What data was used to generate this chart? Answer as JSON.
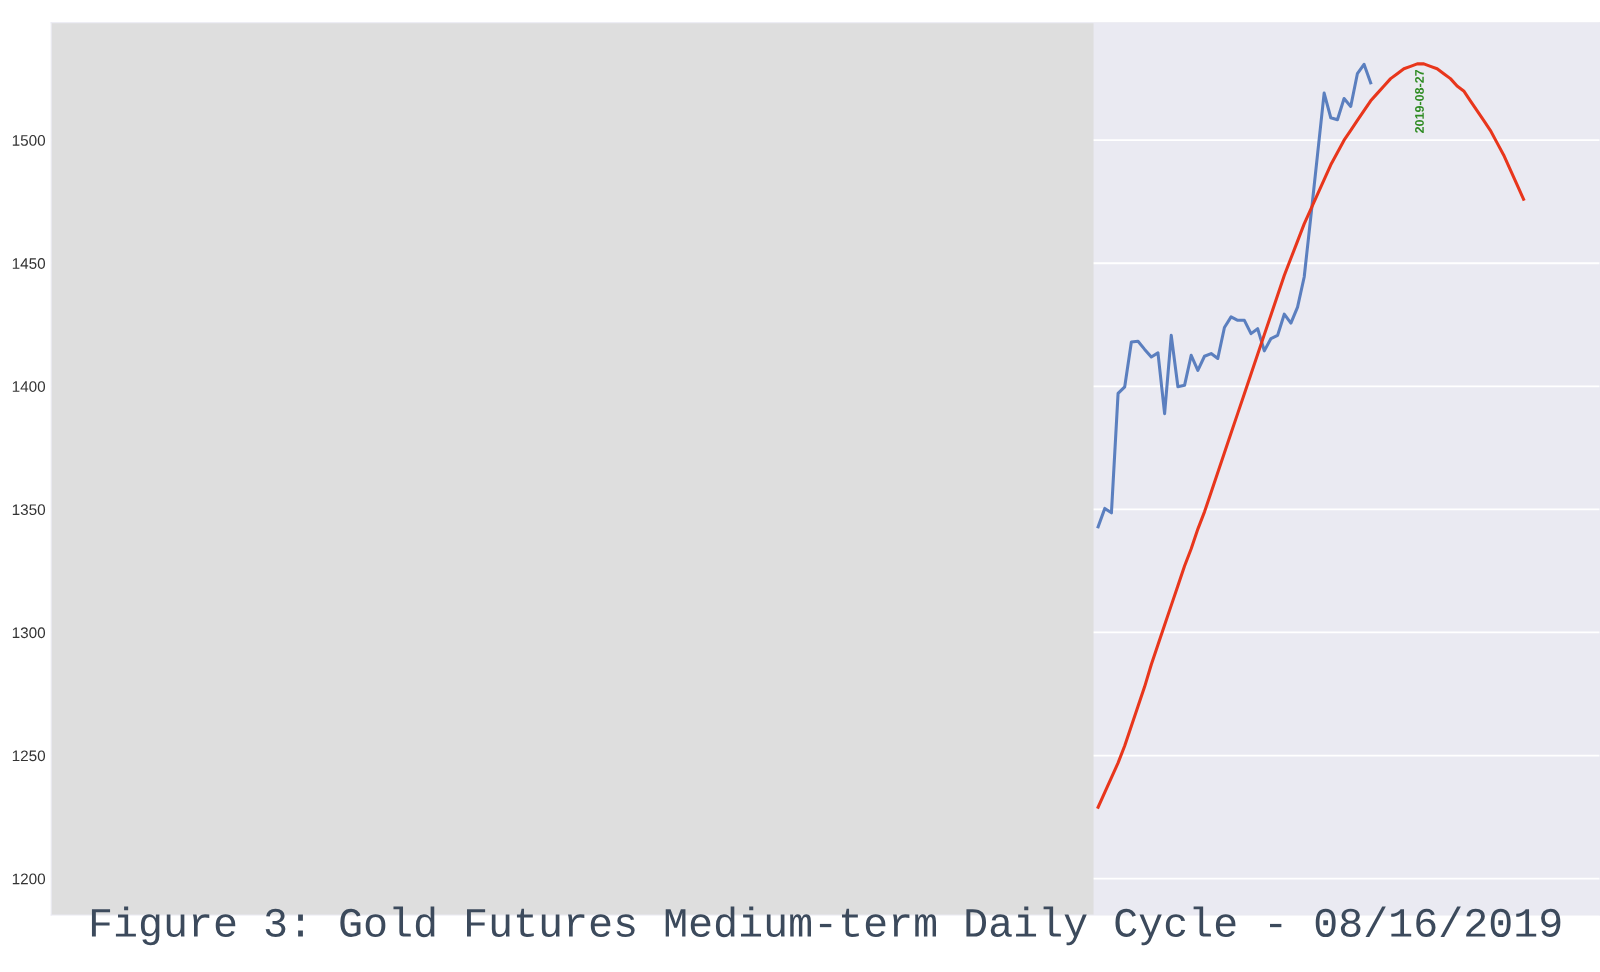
{
  "chart_data": {
    "type": "line",
    "title": "Figure 3: Gold Futures Medium-term Daily Cycle - 08/16/2019",
    "categories": [
      null,
      null,
      null,
      null,
      null,
      null,
      null,
      null,
      null,
      null,
      null,
      null,
      null,
      null,
      null,
      null,
      null,
      null,
      null,
      null,
      null,
      null,
      null,
      null,
      null,
      null,
      null,
      null,
      null,
      null,
      null,
      null,
      null,
      null,
      null,
      null,
      null,
      null,
      null,
      null,
      null,
      null,
      null,
      null,
      null,
      null,
      null,
      null,
      null,
      null,
      null,
      null,
      null,
      null,
      null,
      null,
      null,
      null,
      null,
      null,
      null,
      null,
      null,
      null,
      null,
      null,
      null,
      null,
      null,
      null,
      null,
      null,
      null,
      null,
      null,
      null,
      null,
      null,
      null,
      null,
      null,
      null,
      null,
      null,
      null,
      null,
      null,
      null,
      null,
      null,
      null,
      null,
      null,
      null,
      null,
      null,
      null,
      null,
      null,
      null,
      null,
      null,
      null,
      null,
      null,
      null,
      null,
      null,
      null,
      null,
      null,
      null,
      null,
      null,
      null,
      null,
      null,
      null,
      null,
      null,
      null,
      null,
      null,
      null,
      null,
      null,
      null,
      null,
      null,
      null,
      null,
      null,
      null,
      null,
      null,
      null,
      null,
      null,
      null,
      null,
      null,
      null,
      null,
      null,
      null,
      null,
      null,
      null,
      null,
      null,
      null,
      null,
      null,
      null,
      null,
      null,
      null,
      null,
      null,
      null,
      null,
      null,
      null,
      null,
      null,
      null,
      null,
      null,
      null,
      null,
      null,
      null,
      null,
      null,
      null,
      null,
      null,
      null,
      null,
      null,
      null,
      null,
      null,
      null,
      null,
      null,
      null,
      null,
      null,
      null,
      null,
      null,
      null,
      null,
      null,
      null,
      null,
      null,
      null,
      null,
      null,
      null,
      null,
      null,
      null,
      null,
      null,
      null,
      null,
      null,
      null,
      null,
      null,
      null,
      null,
      null,
      null,
      null,
      null,
      null,
      null,
      null,
      null,
      null,
      null,
      null,
      null,
      null,
      null,
      null,
      null,
      null,
      null
    ],
    "ylim": [
      1185.2,
      1547.7
    ],
    "yticks": [
      1200,
      1250,
      1300,
      1350,
      1400,
      1450,
      1500
    ],
    "tick_labels": "y",
    "grid": "y",
    "line_style": "solid",
    "marker": "none",
    "series": [
      {
        "color": "#5b7fbf",
        "values": [
          null,
          null,
          null,
          null,
          null,
          null,
          null,
          null,
          null,
          null,
          null,
          null,
          null,
          null,
          null,
          null,
          null,
          null,
          null,
          null,
          null,
          null,
          null,
          null,
          null,
          null,
          null,
          null,
          null,
          null,
          null,
          null,
          null,
          null,
          null,
          null,
          null,
          null,
          null,
          null,
          null,
          null,
          null,
          null,
          null,
          null,
          null,
          null,
          null,
          null,
          null,
          null,
          null,
          null,
          null,
          null,
          null,
          null,
          null,
          null,
          null,
          null,
          null,
          null,
          null,
          null,
          null,
          null,
          null,
          null,
          null,
          null,
          null,
          null,
          null,
          null,
          null,
          null,
          null,
          null,
          null,
          null,
          null,
          null,
          null,
          null,
          null,
          null,
          null,
          null,
          null,
          null,
          null,
          null,
          null,
          null,
          null,
          null,
          null,
          null,
          null,
          null,
          null,
          null,
          null,
          null,
          null,
          null,
          null,
          null,
          null,
          null,
          null,
          null,
          null,
          null,
          null,
          null,
          null,
          null,
          null,
          null,
          null,
          null,
          null,
          null,
          null,
          null,
          null,
          null,
          null,
          null,
          null,
          null,
          null,
          null,
          null,
          null,
          null,
          null,
          null,
          null,
          null,
          null,
          null,
          null,
          null,
          null,
          null,
          null,
          null,
          null,
          null,
          null,
          null,
          null,
          null,
          1342.9,
          1350.4,
          1348.6,
          1397.1,
          1399.8,
          1418.0,
          1418.3,
          1415.0,
          1411.9,
          1413.6,
          1388.9,
          1420.7,
          1399.8,
          1400.4,
          1412.6,
          1406.5,
          1412.2,
          1413.3,
          1411.3,
          1423.9,
          1428.2,
          1426.8,
          1426.8,
          1421.4,
          1423.4,
          1414.4,
          1419.4,
          1420.7,
          1429.3,
          1425.7,
          1432.2,
          1444.4,
          1469,
          1494,
          1519.1,
          1509.1,
          1508.3,
          1516.9,
          1513.7,
          1527.0,
          1530.8,
          1523.3,
          null,
          null,
          null,
          null,
          null,
          null,
          null,
          null,
          null,
          null,
          null,
          null,
          null,
          null,
          null,
          null,
          null,
          null,
          null,
          null,
          null,
          null,
          null,
          null,
          null,
          null,
          null,
          null,
          null,
          null,
          null,
          null,
          null,
          null
        ]
      },
      {
        "color": "#e8361c",
        "values": [
          null,
          null,
          null,
          null,
          null,
          null,
          null,
          null,
          null,
          null,
          null,
          null,
          null,
          null,
          null,
          null,
          null,
          null,
          null,
          null,
          null,
          null,
          null,
          null,
          null,
          null,
          null,
          null,
          null,
          null,
          null,
          null,
          null,
          null,
          null,
          null,
          null,
          null,
          null,
          null,
          null,
          null,
          null,
          null,
          null,
          null,
          null,
          null,
          null,
          null,
          null,
          null,
          null,
          null,
          null,
          null,
          null,
          null,
          null,
          null,
          null,
          null,
          null,
          null,
          null,
          null,
          null,
          null,
          null,
          null,
          null,
          null,
          null,
          null,
          null,
          null,
          null,
          null,
          null,
          null,
          null,
          null,
          null,
          null,
          null,
          null,
          null,
          null,
          null,
          null,
          null,
          null,
          null,
          null,
          null,
          null,
          null,
          null,
          null,
          null,
          null,
          null,
          null,
          null,
          null,
          null,
          null,
          null,
          null,
          null,
          null,
          null,
          null,
          null,
          null,
          null,
          null,
          null,
          null,
          null,
          null,
          null,
          null,
          null,
          null,
          null,
          null,
          null,
          null,
          null,
          null,
          null,
          null,
          null,
          null,
          null,
          null,
          null,
          null,
          null,
          null,
          null,
          null,
          null,
          null,
          null,
          null,
          null,
          null,
          null,
          null,
          null,
          null,
          null,
          null,
          null,
          null,
          1229,
          1235,
          1241,
          1247,
          1254,
          1262,
          1270,
          1278,
          1287,
          1295,
          1303,
          1311,
          1319,
          1327,
          1334,
          1342,
          1349,
          1357,
          1365,
          1373,
          1381,
          1389,
          1397,
          1405,
          1413,
          1421,
          1429,
          1437,
          1445,
          1452,
          1459,
          1466,
          1472,
          1478,
          1484,
          1490,
          1495,
          1500,
          1504,
          1508,
          1512,
          1516,
          1519,
          1522,
          1525,
          1527,
          1529,
          1530,
          1531,
          1531,
          1530,
          1529,
          1527,
          1525,
          1522,
          1520,
          1516,
          1512,
          1508,
          1504,
          1499,
          1494,
          1488,
          1482,
          1476,
          null,
          null,
          null,
          null,
          null,
          null,
          null,
          null,
          null,
          null,
          null
        ]
      }
    ],
    "annotations": [
      {
        "text": "2019-08-27",
        "y": 1531
      }
    ]
  }
}
